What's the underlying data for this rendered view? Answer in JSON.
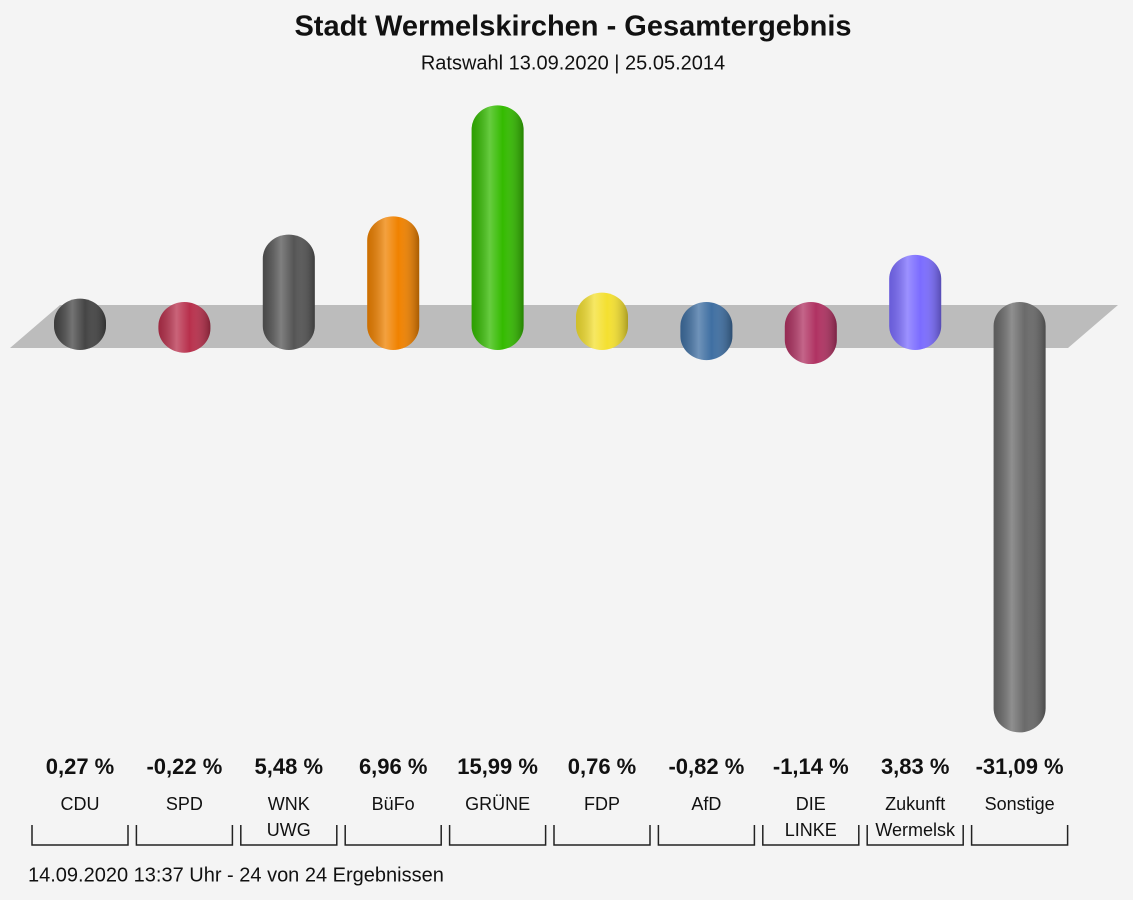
{
  "chart_data": {
    "type": "bar",
    "title": "Stadt Wermelskirchen - Gesamtergebnis",
    "subtitle": "Ratswahl 13.09.2020  | 25.05.2014",
    "footer": "14.09.2020 13:37 Uhr - 24 von 24 Ergebnissen",
    "categories": [
      "CDU",
      "SPD",
      "WNK\nUWG",
      "BüFo",
      "GRÜNE",
      "FDP",
      "AfD",
      "DIE\nLINKE",
      "Zukunft\nWermelsk",
      "Sonstige"
    ],
    "values": [
      0.27,
      -0.22,
      5.48,
      6.96,
      15.99,
      0.76,
      -0.82,
      -1.14,
      3.83,
      -31.09
    ],
    "value_labels": [
      "0,27 %",
      "-0,22 %",
      "5,48 %",
      "6,96 %",
      "15,99 %",
      "0,76 %",
      "-0,82 %",
      "-1,14 %",
      "3,83 %",
      "-31,09 %"
    ],
    "colors": [
      "#454545",
      "#b8304c",
      "#555555",
      "#f08200",
      "#34bb00",
      "#f4e030",
      "#3f6fa2",
      "#b03262",
      "#7b6cff",
      "#6a6a6a"
    ]
  }
}
